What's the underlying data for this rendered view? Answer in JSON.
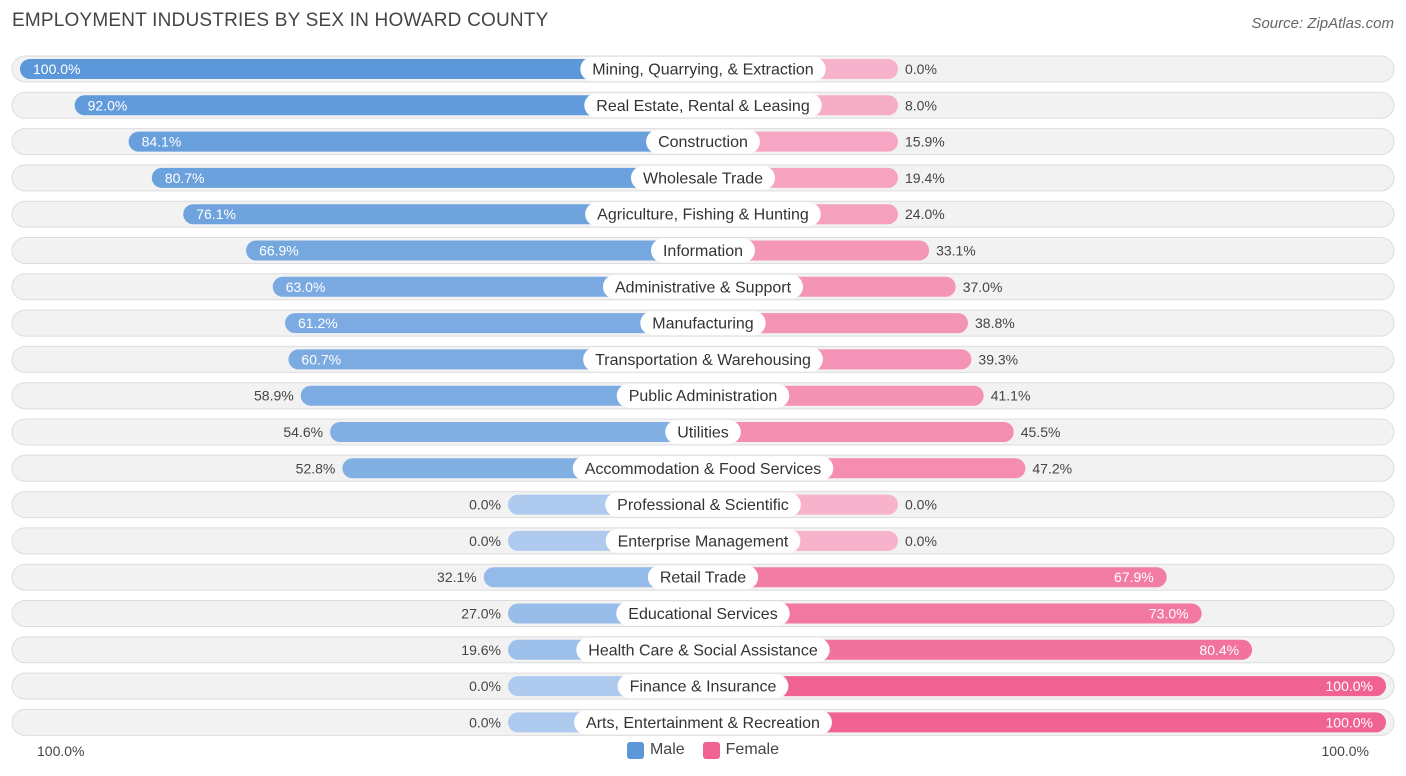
{
  "header": {
    "title": "EMPLOYMENT INDUSTRIES BY SEX IN HOWARD COUNTY",
    "source": "Source: ZipAtlas.com"
  },
  "axis": {
    "left_label": "100.0%",
    "right_label": "100.0%"
  },
  "legend": {
    "male_label": "Male",
    "female_label": "Female",
    "male_color": "#5b97d9",
    "female_color": "#f06292"
  },
  "chart_data": {
    "type": "bar",
    "orientation": "horizontal-diverging",
    "title": "EMPLOYMENT INDUSTRIES BY SEX IN HOWARD COUNTY",
    "xlim": [
      0,
      100
    ],
    "series": [
      {
        "name": "Male",
        "values": [
          100.0,
          92.0,
          84.1,
          80.7,
          76.1,
          66.9,
          63.0,
          61.2,
          60.7,
          58.9,
          54.6,
          52.8,
          0.0,
          0.0,
          32.1,
          27.0,
          19.6,
          0.0,
          0.0
        ]
      },
      {
        "name": "Female",
        "values": [
          0.0,
          8.0,
          15.9,
          19.4,
          24.0,
          33.1,
          37.0,
          38.8,
          39.3,
          41.1,
          45.5,
          47.2,
          0.0,
          0.0,
          67.9,
          73.0,
          80.4,
          100.0,
          100.0
        ]
      }
    ],
    "categories": [
      "Mining, Quarrying, & Extraction",
      "Real Estate, Rental & Leasing",
      "Construction",
      "Wholesale Trade",
      "Agriculture, Fishing & Hunting",
      "Information",
      "Administrative & Support",
      "Manufacturing",
      "Transportation & Warehousing",
      "Public Administration",
      "Utilities",
      "Accommodation & Food Services",
      "Professional & Scientific",
      "Enterprise Management",
      "Retail Trade",
      "Educational Services",
      "Health Care & Social Assistance",
      "Finance & Insurance",
      "Arts, Entertainment & Recreation"
    ],
    "male_labels": [
      "100.0%",
      "92.0%",
      "84.1%",
      "80.7%",
      "76.1%",
      "66.9%",
      "63.0%",
      "61.2%",
      "60.7%",
      "58.9%",
      "54.6%",
      "52.8%",
      "0.0%",
      "0.0%",
      "32.1%",
      "27.0%",
      "19.6%",
      "0.0%",
      "0.0%"
    ],
    "female_labels": [
      "0.0%",
      "8.0%",
      "15.9%",
      "19.4%",
      "24.0%",
      "33.1%",
      "37.0%",
      "38.8%",
      "39.3%",
      "41.1%",
      "45.5%",
      "47.2%",
      "0.0%",
      "0.0%",
      "67.9%",
      "73.0%",
      "80.4%",
      "100.0%",
      "100.0%"
    ]
  }
}
